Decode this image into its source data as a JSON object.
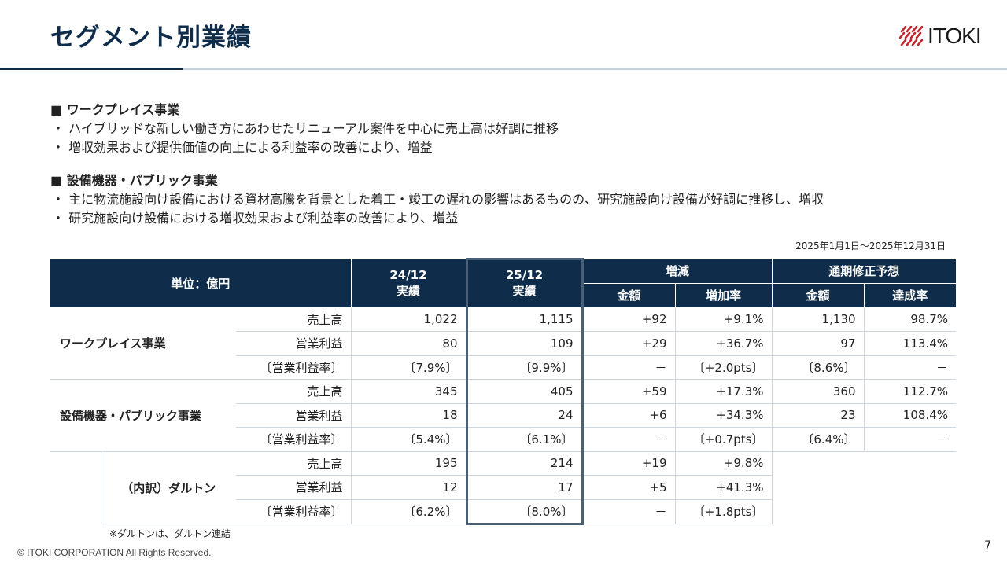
{
  "title": "セグメント別業績",
  "logo_text": "ITOKI",
  "sections": [
    {
      "heading": "■ ワークプレイス事業",
      "bullets": [
        "・ ハイブリッドな新しい働き方にあわせたリニューアル案件を中心に売上高は好調に推移",
        "・ 増収効果および提供価値の向上による利益率の改善により、増益"
      ]
    },
    {
      "heading": "■ 設備機器・パブリック事業",
      "bullets": [
        "・ 主に物流施設向け設備における資材高騰を背景とした着工・竣工の遅れの影響はあるものの、研究施設向け設備が好調に推移し、増収",
        "・ 研究施設向け設備における増収効果および利益率の改善により、増益"
      ]
    }
  ],
  "period": "2025年1月1日～2025年12月31日",
  "table": {
    "unit": "単位：億円",
    "col_2412": [
      "24/12",
      "実績"
    ],
    "col_2512": [
      "25/12",
      "実績"
    ],
    "change": "増減",
    "forecast": "通期修正予想",
    "amount": "金額",
    "rate": "増加率",
    "amount2": "金額",
    "achieve": "達成率",
    "groups": [
      {
        "name": "ワークプレイス事業",
        "rows": [
          {
            "label": "売上高",
            "v2412": "1,022",
            "v2512": "1,115",
            "chg": "+92",
            "rate": "+9.1%",
            "fc": "1,130",
            "ach": "98.7%"
          },
          {
            "label": "営業利益",
            "v2412": "80",
            "v2512": "109",
            "chg": "+29",
            "rate": "+36.7%",
            "fc": "97",
            "ach": "113.4%"
          },
          {
            "label": "〔営業利益率〕",
            "v2412": "〔7.9%〕",
            "v2512": "〔9.9%〕",
            "chg": "－",
            "rate": "〔+2.0pts〕",
            "fc": "〔8.6%〕",
            "ach": "－"
          }
        ]
      },
      {
        "name": "設備機器・パブリック事業",
        "rows": [
          {
            "label": "売上高",
            "v2412": "345",
            "v2512": "405",
            "chg": "+59",
            "rate": "+17.3%",
            "fc": "360",
            "ach": "112.7%"
          },
          {
            "label": "営業利益",
            "v2412": "18",
            "v2512": "24",
            "chg": "+6",
            "rate": "+34.3%",
            "fc": "23",
            "ach": "108.4%"
          },
          {
            "label": "〔営業利益率〕",
            "v2412": "〔5.4%〕",
            "v2512": "〔6.1%〕",
            "chg": "－",
            "rate": "〔+0.7pts〕",
            "fc": "〔6.4%〕",
            "ach": "－"
          }
        ]
      },
      {
        "name": "（内訳）ダルトン",
        "rows": [
          {
            "label": "売上高",
            "v2412": "195",
            "v2512": "214",
            "chg": "+19",
            "rate": "+9.8%"
          },
          {
            "label": "営業利益",
            "v2412": "12",
            "v2512": "17",
            "chg": "+5",
            "rate": "+41.3%"
          },
          {
            "label": "〔営業利益率〕",
            "v2412": "〔6.2%〕",
            "v2512": "〔8.0%〕",
            "chg": "－",
            "rate": "〔+1.8pts〕"
          }
        ]
      }
    ]
  },
  "note": "※ダルトンは、ダルトン連結",
  "copyright": "© ITOKI CORPORATION All Rights Reserved.",
  "page_number": "7"
}
